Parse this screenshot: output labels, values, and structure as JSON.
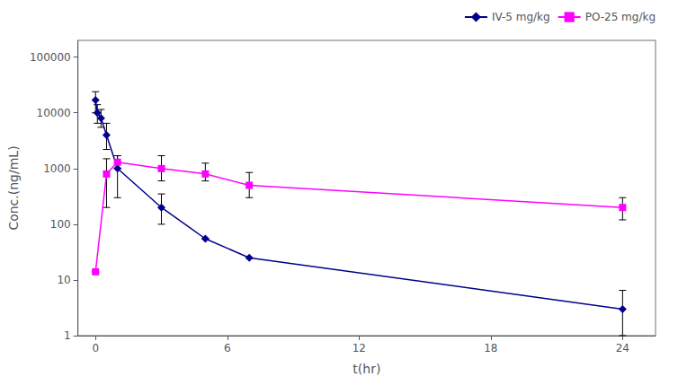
{
  "chart_data": {
    "type": "line",
    "xlabel": "t(hr)",
    "ylabel": "Conc.(ng/mL)",
    "log": "y",
    "xlim": [
      -0.8,
      25.5
    ],
    "ylim": [
      1,
      200000
    ],
    "xticks": [
      0,
      6,
      12,
      18,
      24
    ],
    "yticks": [
      1,
      10,
      100,
      1000,
      10000,
      100000
    ],
    "grid": false,
    "legend": "upper right",
    "series": [
      {
        "name": "IV-5 mg/kg",
        "color": "#00008B",
        "marker": "diamond",
        "x": [
          0.0,
          0.083,
          0.25,
          0.5,
          1.0,
          3.0,
          5.0,
          7.0,
          24.0
        ],
        "values": [
          17000,
          10000,
          8000,
          4000,
          1000,
          200,
          55,
          25,
          3.0
        ],
        "yerr_lower": [
          7000,
          3500,
          2500,
          1800,
          700,
          100,
          0,
          0,
          2.0
        ],
        "yerr_upper": [
          7000,
          4000,
          3500,
          2500,
          700,
          150,
          0,
          0,
          3.5
        ]
      },
      {
        "name": "PO-25 mg/kg",
        "color": "#FF00FF",
        "marker": "square",
        "x": [
          0.0,
          0.5,
          1.0,
          3.0,
          5.0,
          7.0,
          24.0
        ],
        "values": [
          14,
          800,
          1300,
          1000,
          800,
          500,
          200
        ],
        "yerr_lower": [
          0,
          600,
          300,
          400,
          200,
          200,
          80
        ],
        "yerr_upper": [
          0,
          700,
          400,
          700,
          450,
          350,
          100
        ]
      }
    ]
  }
}
